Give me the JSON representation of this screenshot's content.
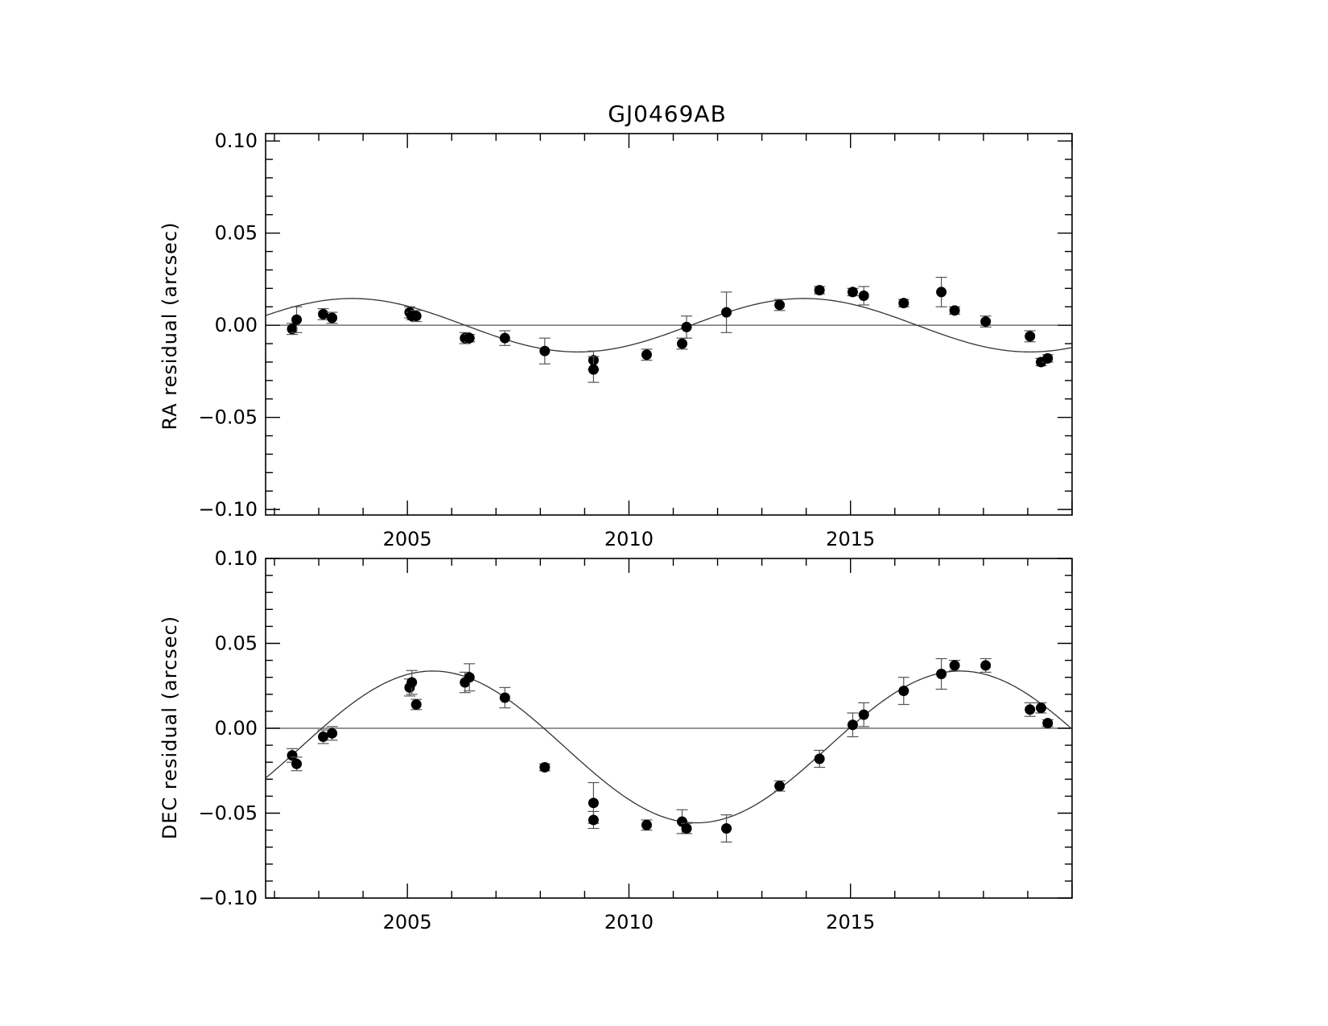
{
  "title": "GJ0469AB",
  "chart_data": [
    {
      "type": "scatter",
      "name": "ra-panel",
      "ylabel": "RA residual (arcsec)",
      "xlabel": "",
      "xlim": [
        2001.8,
        2020.0
      ],
      "ylim": [
        -0.103,
        0.104
      ],
      "yticks": [
        {
          "v": 0.1,
          "label": "0.10"
        },
        {
          "v": 0.05,
          "label": "0.05"
        },
        {
          "v": 0.0,
          "label": "0.00"
        },
        {
          "v": -0.05,
          "label": "−0.05"
        },
        {
          "v": -0.1,
          "label": "−0.10"
        }
      ],
      "xticks": [
        {
          "v": 2005,
          "label": "2005"
        },
        {
          "v": 2010,
          "label": "2010"
        },
        {
          "v": 2015,
          "label": "2015"
        }
      ],
      "zero_line": 0,
      "model": {
        "amplitude": 0.0145,
        "period": 10.2,
        "phase_year": 2001.2,
        "offset": 0
      },
      "points": [
        {
          "x": 2002.4,
          "y": -0.002,
          "err": 0.003
        },
        {
          "x": 2002.5,
          "y": 0.003,
          "err": 0.007
        },
        {
          "x": 2003.1,
          "y": 0.006,
          "err": 0.003
        },
        {
          "x": 2003.3,
          "y": 0.004,
          "err": 0.003
        },
        {
          "x": 2005.05,
          "y": 0.007,
          "err": 0.003
        },
        {
          "x": 2005.1,
          "y": 0.005,
          "err": 0.002
        },
        {
          "x": 2005.2,
          "y": 0.005,
          "err": 0.003
        },
        {
          "x": 2006.3,
          "y": -0.007,
          "err": 0.003
        },
        {
          "x": 2006.4,
          "y": -0.007,
          "err": 0.002
        },
        {
          "x": 2007.2,
          "y": -0.007,
          "err": 0.004
        },
        {
          "x": 2008.1,
          "y": -0.014,
          "err": 0.007
        },
        {
          "x": 2009.2,
          "y": -0.019,
          "err": 0.005
        },
        {
          "x": 2009.2,
          "y": -0.024,
          "err": 0.007
        },
        {
          "x": 2010.4,
          "y": -0.016,
          "err": 0.003
        },
        {
          "x": 2011.2,
          "y": -0.01,
          "err": 0.003
        },
        {
          "x": 2011.3,
          "y": -0.001,
          "err": 0.006
        },
        {
          "x": 2012.2,
          "y": 0.007,
          "err": 0.011
        },
        {
          "x": 2013.4,
          "y": 0.011,
          "err": 0.003
        },
        {
          "x": 2014.3,
          "y": 0.019,
          "err": 0.002
        },
        {
          "x": 2015.05,
          "y": 0.018,
          "err": 0.002
        },
        {
          "x": 2015.3,
          "y": 0.016,
          "err": 0.005
        },
        {
          "x": 2016.2,
          "y": 0.012,
          "err": 0.002
        },
        {
          "x": 2017.05,
          "y": 0.018,
          "err": 0.008
        },
        {
          "x": 2017.35,
          "y": 0.008,
          "err": 0.002
        },
        {
          "x": 2018.05,
          "y": 0.002,
          "err": 0.003
        },
        {
          "x": 2019.05,
          "y": -0.006,
          "err": 0.003
        },
        {
          "x": 2019.3,
          "y": -0.02,
          "err": 0.002
        },
        {
          "x": 2019.45,
          "y": -0.018,
          "err": 0.002
        }
      ]
    },
    {
      "type": "scatter",
      "name": "dec-panel",
      "ylabel": "DEC residual (arcsec)",
      "xlabel": "",
      "xlim": [
        2001.8,
        2020.0
      ],
      "ylim": [
        -0.1,
        0.1
      ],
      "yticks": [
        {
          "v": 0.1,
          "label": "0.10"
        },
        {
          "v": 0.05,
          "label": "0.05"
        },
        {
          "v": 0.0,
          "label": "0.00"
        },
        {
          "v": -0.05,
          "label": "−0.05"
        },
        {
          "v": -0.1,
          "label": "−0.10"
        }
      ],
      "xticks": [
        {
          "v": 2005,
          "label": "2005"
        },
        {
          "v": 2010,
          "label": "2010"
        },
        {
          "v": 2015,
          "label": "2015"
        }
      ],
      "zero_line": 0,
      "model": {
        "amplitude": 0.0447,
        "period": 11.9,
        "phase_year": 2002.6,
        "offset": -0.011
      },
      "points": [
        {
          "x": 2002.4,
          "y": -0.016,
          "err": 0.004
        },
        {
          "x": 2002.5,
          "y": -0.021,
          "err": 0.004
        },
        {
          "x": 2003.1,
          "y": -0.005,
          "err": 0.004
        },
        {
          "x": 2003.3,
          "y": -0.003,
          "err": 0.004
        },
        {
          "x": 2005.05,
          "y": 0.024,
          "err": 0.005
        },
        {
          "x": 2005.1,
          "y": 0.027,
          "err": 0.007
        },
        {
          "x": 2005.2,
          "y": 0.014,
          "err": 0.003
        },
        {
          "x": 2006.3,
          "y": 0.027,
          "err": 0.006
        },
        {
          "x": 2006.4,
          "y": 0.03,
          "err": 0.008
        },
        {
          "x": 2007.2,
          "y": 0.018,
          "err": 0.006
        },
        {
          "x": 2008.1,
          "y": -0.023,
          "err": 0.002
        },
        {
          "x": 2009.2,
          "y": -0.044,
          "err": 0.012
        },
        {
          "x": 2009.2,
          "y": -0.054,
          "err": 0.005
        },
        {
          "x": 2010.4,
          "y": -0.057,
          "err": 0.003
        },
        {
          "x": 2011.2,
          "y": -0.055,
          "err": 0.007
        },
        {
          "x": 2011.3,
          "y": -0.059,
          "err": 0.003
        },
        {
          "x": 2012.2,
          "y": -0.059,
          "err": 0.008
        },
        {
          "x": 2013.4,
          "y": -0.034,
          "err": 0.003
        },
        {
          "x": 2014.3,
          "y": -0.018,
          "err": 0.005
        },
        {
          "x": 2015.05,
          "y": 0.002,
          "err": 0.007
        },
        {
          "x": 2015.3,
          "y": 0.008,
          "err": 0.007
        },
        {
          "x": 2016.2,
          "y": 0.022,
          "err": 0.008
        },
        {
          "x": 2017.05,
          "y": 0.032,
          "err": 0.009
        },
        {
          "x": 2017.35,
          "y": 0.037,
          "err": 0.003
        },
        {
          "x": 2018.05,
          "y": 0.037,
          "err": 0.004
        },
        {
          "x": 2019.05,
          "y": 0.011,
          "err": 0.004
        },
        {
          "x": 2019.3,
          "y": 0.012,
          "err": 0.003
        },
        {
          "x": 2019.45,
          "y": 0.003,
          "err": 0.002
        }
      ]
    }
  ]
}
